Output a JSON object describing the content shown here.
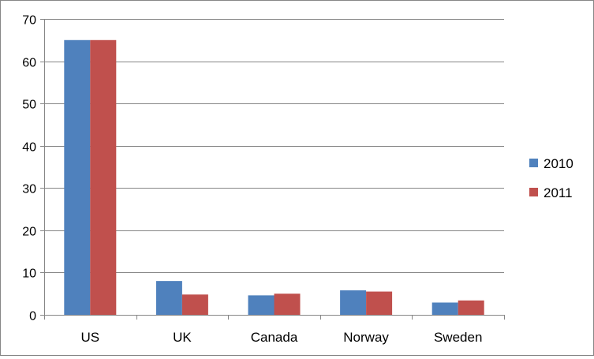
{
  "chart_data": {
    "type": "bar",
    "categories": [
      "US",
      "UK",
      "Canada",
      "Norway",
      "Sweden"
    ],
    "series": [
      {
        "name": "2010",
        "color": "#4f81bd",
        "values": [
          65,
          8,
          4.6,
          5.8,
          2.9
        ]
      },
      {
        "name": "2011",
        "color": "#c0504d",
        "values": [
          65,
          4.8,
          5.0,
          5.5,
          3.4
        ]
      }
    ],
    "yticks": [
      "0",
      "10",
      "20",
      "30",
      "40",
      "50",
      "60",
      "70"
    ],
    "ylim": [
      0,
      70
    ],
    "grid": true,
    "legend_position": "right",
    "gridline_color": "#868686",
    "axis_color": "#868686"
  }
}
